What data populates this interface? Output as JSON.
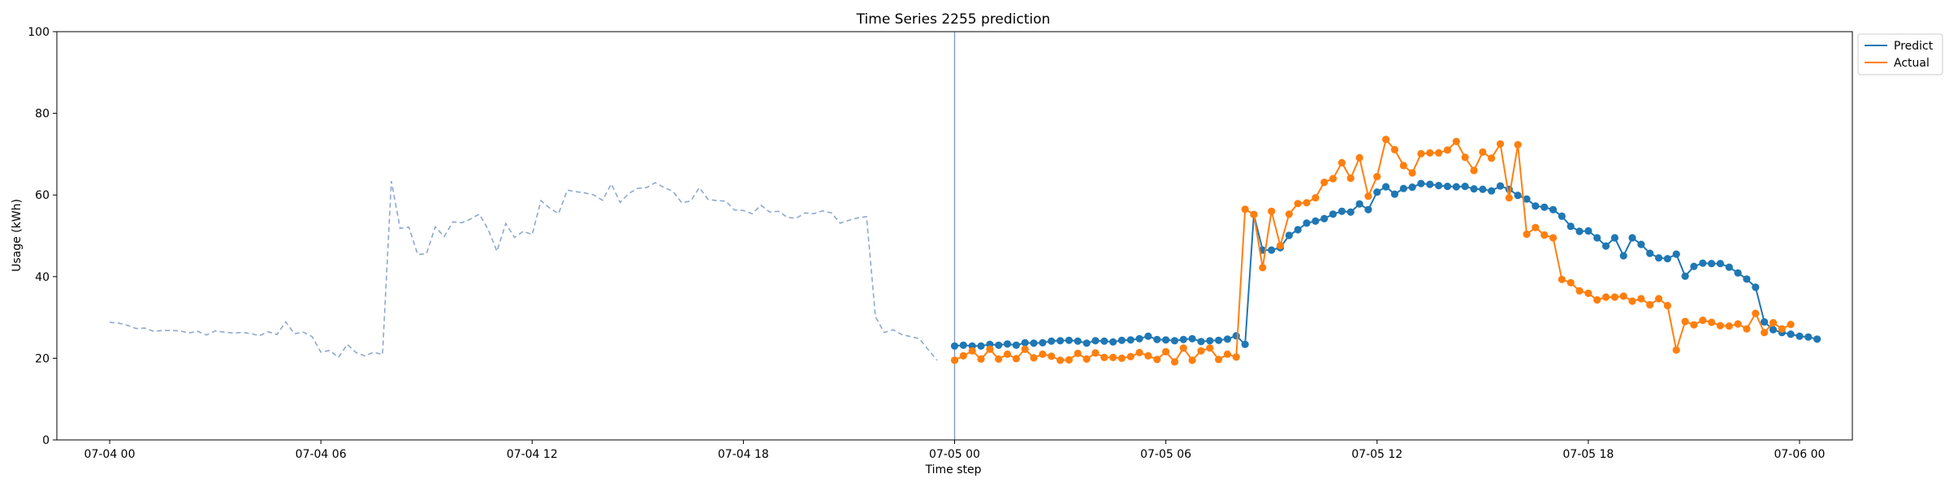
{
  "chart_data": {
    "type": "line",
    "title": "Time Series 2255 prediction",
    "xlabel": "Time step",
    "ylabel": "Usage (kWh)",
    "x_start": "2023-07-03 22:30",
    "x_end": "2023-07-06 01:30",
    "ylim": [
      0,
      100
    ],
    "yticks": [
      0,
      20,
      40,
      60,
      80,
      100
    ],
    "xticks": [
      {
        "t": "07-04 00:00",
        "label": "07-04 00"
      },
      {
        "t": "07-04 06:00",
        "label": "07-04 06"
      },
      {
        "t": "07-04 12:00",
        "label": "07-04 12"
      },
      {
        "t": "07-04 18:00",
        "label": "07-04 18"
      },
      {
        "t": "07-05 00:00",
        "label": "07-05 00"
      },
      {
        "t": "07-05 06:00",
        "label": "07-05 06"
      },
      {
        "t": "07-05 12:00",
        "label": "07-05 12"
      },
      {
        "t": "07-05 18:00",
        "label": "07-05 18"
      },
      {
        "t": "07-06 00:00",
        "label": "07-06 00"
      }
    ],
    "grid": false,
    "legend_position": "outside top-right",
    "forecast_start_line": "07-05 00:00",
    "history": {
      "start": "07-04 00:00",
      "interval_minutes": 15,
      "color": "#8fa8cc",
      "style": "dashed",
      "values": [
        28.8,
        28.6,
        28.1,
        27.3,
        27.4,
        26.6,
        26.8,
        26.8,
        26.7,
        26.2,
        26.6,
        25.7,
        26.7,
        26.4,
        26.2,
        26.3,
        26.1,
        25.5,
        26.5,
        25.8,
        28.9,
        26.0,
        26.4,
        25.3,
        21.5,
        21.9,
        20.2,
        23.4,
        21.4,
        20.6,
        21.5,
        20.9,
        63.4,
        51.8,
        52.1,
        45.4,
        45.6,
        52.2,
        49.8,
        53.4,
        53.2,
        54.1,
        55.3,
        51.6,
        46.2,
        53.0,
        49.6,
        51.1,
        50.3,
        58.6,
        56.8,
        55.4,
        61.2,
        60.8,
        60.5,
        60.0,
        58.7,
        62.7,
        58.2,
        60.4,
        61.6,
        61.8,
        63.0,
        61.8,
        60.9,
        58.1,
        58.5,
        61.8,
        58.9,
        58.6,
        58.5,
        56.3,
        56.2,
        55.4,
        57.5,
        55.8,
        56.0,
        54.5,
        54.3,
        55.6,
        55.4,
        56.1,
        55.6,
        53.1,
        53.8,
        54.4,
        54.7,
        30.2,
        26.3,
        27.0,
        25.8,
        25.3,
        24.8,
        22.1,
        19.5
      ]
    },
    "forecast": {
      "start": "07-05 00:00",
      "interval_minutes": 15,
      "series": [
        {
          "name": "Predict",
          "color": "#1f77b4",
          "values": [
            23.0,
            23.2,
            23.0,
            23.0,
            23.4,
            23.2,
            23.5,
            23.2,
            23.8,
            23.7,
            23.8,
            24.2,
            24.3,
            24.4,
            24.2,
            23.7,
            24.3,
            24.2,
            24.0,
            24.4,
            24.5,
            24.8,
            25.4,
            24.6,
            24.5,
            24.3,
            24.6,
            24.8,
            24.1,
            24.3,
            24.4,
            24.7,
            25.5,
            23.4,
            55.2,
            46.5,
            46.5,
            47.1,
            50.1,
            51.5,
            53.1,
            53.6,
            54.2,
            55.3,
            56.0,
            55.8,
            57.8,
            56.4,
            60.7,
            62.0,
            60.2,
            61.6,
            61.9,
            62.8,
            62.6,
            62.3,
            62.1,
            62.0,
            62.1,
            61.5,
            61.4,
            61.0,
            62.2,
            61.4,
            59.9,
            59.0,
            57.3,
            57.0,
            56.4,
            54.8,
            52.3,
            51.1,
            51.2,
            49.5,
            47.5,
            49.5,
            45.1,
            49.5,
            47.9,
            45.7,
            44.6,
            44.4,
            45.5,
            40.1,
            42.5,
            43.3,
            43.2,
            43.2,
            42.3,
            40.9,
            39.4,
            37.4,
            28.9,
            27.0,
            26.3,
            25.9,
            25.4,
            25.2,
            24.7
          ]
        },
        {
          "name": "Actual",
          "color": "#ff7f0e",
          "values": [
            19.5,
            20.6,
            21.8,
            19.8,
            22.2,
            19.8,
            21.0,
            19.9,
            22.2,
            20.1,
            21.0,
            20.5,
            19.5,
            19.6,
            21.2,
            19.8,
            21.3,
            20.2,
            20.2,
            20.0,
            20.4,
            21.4,
            20.6,
            19.7,
            21.6,
            19.1,
            22.5,
            19.5,
            21.8,
            22.5,
            19.7,
            21.0,
            20.3,
            56.5,
            55.2,
            42.2,
            56.0,
            47.6,
            55.3,
            57.9,
            58.1,
            59.3,
            63.1,
            64.0,
            67.9,
            64.1,
            69.1,
            59.7,
            64.5,
            73.6,
            71.1,
            67.2,
            65.4,
            70.1,
            70.3,
            70.3,
            71.0,
            73.1,
            69.2,
            66.0,
            70.5,
            69.0,
            72.5,
            59.3,
            72.3,
            50.4,
            52.0,
            50.2,
            49.5,
            39.3,
            38.5,
            36.5,
            35.9,
            34.3,
            35.0,
            35.0,
            35.2,
            34.0,
            34.6,
            33.1,
            34.6,
            32.9,
            22.0,
            29.0,
            28.2,
            29.3,
            28.8,
            28.0,
            27.9,
            28.4,
            27.2,
            31.0,
            26.3,
            28.7,
            27.2,
            28.3
          ]
        }
      ]
    }
  }
}
